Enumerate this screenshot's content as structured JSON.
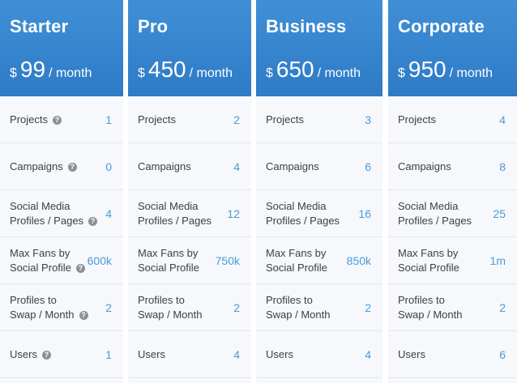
{
  "plans": [
    {
      "name": "Starter",
      "currency": "$",
      "price": "99",
      "period": "/ month",
      "features": [
        {
          "label": "Projects",
          "value": "1",
          "help": true
        },
        {
          "label": "Campaigns",
          "value": "0",
          "help": true
        },
        {
          "label": "Social Media\nProfiles / Pages",
          "value": "4",
          "help": true
        },
        {
          "label": "Max Fans by\nSocial Profile",
          "value": "600k",
          "help": true
        },
        {
          "label": "Profiles to\nSwap / Month",
          "value": "2",
          "help": true
        },
        {
          "label": "Users",
          "value": "1",
          "help": true
        }
      ]
    },
    {
      "name": "Pro",
      "currency": "$",
      "price": "450",
      "period": "/ month",
      "features": [
        {
          "label": "Projects",
          "value": "2",
          "help": false
        },
        {
          "label": "Campaigns",
          "value": "4",
          "help": false
        },
        {
          "label": "Social Media\nProfiles / Pages",
          "value": "12",
          "help": false
        },
        {
          "label": "Max Fans by\nSocial Profile",
          "value": "750k",
          "help": false
        },
        {
          "label": "Profiles to\nSwap / Month",
          "value": "2",
          "help": false
        },
        {
          "label": "Users",
          "value": "4",
          "help": false
        }
      ]
    },
    {
      "name": "Business",
      "currency": "$",
      "price": "650",
      "period": "/ month",
      "features": [
        {
          "label": "Projects",
          "value": "3",
          "help": false
        },
        {
          "label": "Campaigns",
          "value": "6",
          "help": false
        },
        {
          "label": "Social Media\nProfiles / Pages",
          "value": "16",
          "help": false
        },
        {
          "label": "Max Fans by\nSocial Profile",
          "value": "850k",
          "help": false
        },
        {
          "label": "Profiles to\nSwap / Month",
          "value": "2",
          "help": false
        },
        {
          "label": "Users",
          "value": "4",
          "help": false
        }
      ]
    },
    {
      "name": "Corporate",
      "currency": "$",
      "price": "950",
      "period": "/ month",
      "features": [
        {
          "label": "Projects",
          "value": "4",
          "help": false
        },
        {
          "label": "Campaigns",
          "value": "8",
          "help": false
        },
        {
          "label": "Social Media\nProfiles / Pages",
          "value": "25",
          "help": false
        },
        {
          "label": "Max Fans by\nSocial Profile",
          "value": "1m",
          "help": false
        },
        {
          "label": "Profiles to\nSwap / Month",
          "value": "2",
          "help": false
        },
        {
          "label": "Users",
          "value": "6",
          "help": false
        }
      ]
    }
  ],
  "icons": {
    "help": "question-circle-icon",
    "help_glyph": "?"
  }
}
